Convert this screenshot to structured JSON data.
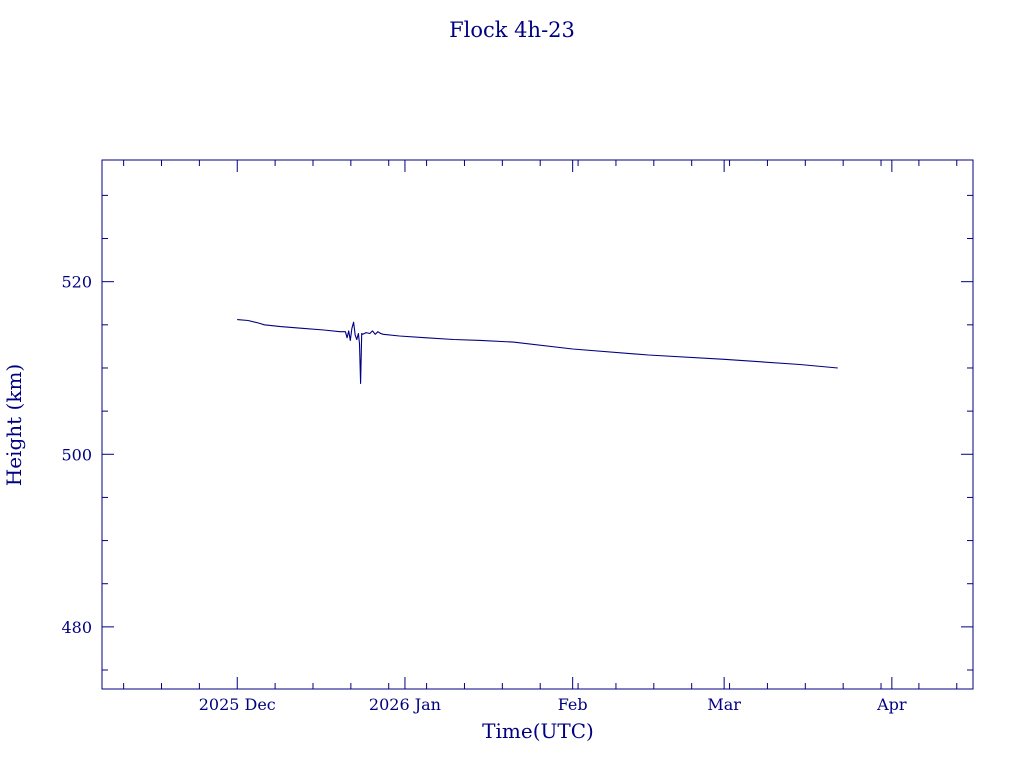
{
  "chart_data": {
    "type": "line",
    "title": "Flock 4h-23",
    "xlabel": "Time(UTC)",
    "ylabel": "Height (km)",
    "color": "#000080",
    "grid": false,
    "x_range": [
      "2025-11-06",
      "2026-04-16"
    ],
    "y_range": [
      472.8,
      534.1
    ],
    "x_ticks": [
      {
        "date": "2025-12-01",
        "label": "2025 Dec"
      },
      {
        "date": "2026-01-01",
        "label": "2026 Jan"
      },
      {
        "date": "2026-02-01",
        "label": "Feb"
      },
      {
        "date": "2026-03-01",
        "label": "Mar"
      },
      {
        "date": "2026-04-01",
        "label": "Apr"
      }
    ],
    "y_ticks": [
      {
        "value": 480,
        "label": "480"
      },
      {
        "value": 500,
        "label": "500"
      },
      {
        "value": 520,
        "label": "520"
      }
    ],
    "series": [
      {
        "x": [
          "2025-12-01",
          "2025-12-03",
          "2025-12-05",
          "2025-12-06",
          "2025-12-09",
          "2025-12-13",
          "2025-12-17",
          "2025-12-20",
          "2025-12-21",
          "2025-12-21.3",
          "2025-12-21.6",
          "2025-12-21.9",
          "2025-12-22.2",
          "2025-12-22.5",
          "2025-12-22.8",
          "2025-12-23.1",
          "2025-12-23.4",
          "2025-12-23.6",
          "2025-12-23.8",
          "2025-12-24",
          "2025-12-24.2",
          "2025-12-24.5",
          "2025-12-24.8",
          "2025-12-25.5",
          "2025-12-26",
          "2025-12-26.5",
          "2025-12-27",
          "2025-12-27.5",
          "2025-12-28",
          "2025-12-31",
          "2026-01-05",
          "2026-01-10",
          "2026-01-15",
          "2026-01-21",
          "2026-02-01",
          "2026-02-15",
          "2026-03-01",
          "2026-03-15",
          "2026-03-22"
        ],
        "y": [
          515.6,
          515.5,
          515.2,
          515.0,
          514.8,
          514.6,
          514.4,
          514.2,
          514.2,
          513.5,
          514.3,
          513.2,
          514.6,
          515.3,
          513.8,
          513.3,
          514.0,
          512.8,
          508.2,
          514.0,
          513.9,
          514.0,
          514.1,
          514.0,
          514.3,
          513.9,
          514.2,
          514.0,
          513.9,
          513.7,
          513.5,
          513.3,
          513.2,
          513.0,
          512.2,
          511.5,
          511.0,
          510.4,
          510.0
        ]
      }
    ]
  }
}
